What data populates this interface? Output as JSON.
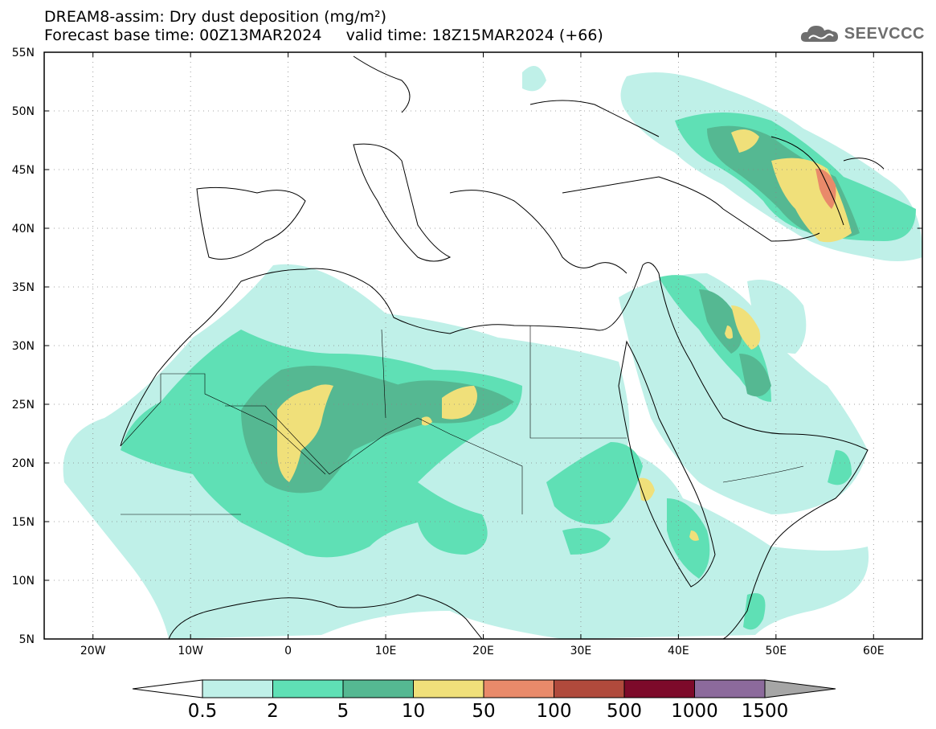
{
  "header": {
    "title_line1": "DREAM8-assim: Dry dust deposition (mg/m²)",
    "title_line2": "Forecast base time: 00Z13MAR2024     valid time: 18Z15MAR2024 (+66)",
    "logo_text": "SEEVCCC"
  },
  "map": {
    "extent": {
      "lon_min": -25,
      "lon_max": 65,
      "lat_min": 5,
      "lat_max": 55
    },
    "lat_labels": [
      "5N",
      "10N",
      "15N",
      "20N",
      "25N",
      "30N",
      "35N",
      "40N",
      "45N",
      "50N",
      "55N"
    ],
    "lat_values": [
      5,
      10,
      15,
      20,
      25,
      30,
      35,
      40,
      45,
      50,
      55
    ],
    "lon_labels": [
      "20W",
      "10W",
      "0",
      "10E",
      "20E",
      "30E",
      "40E",
      "50E",
      "60E"
    ],
    "lon_values": [
      -20,
      -10,
      0,
      10,
      20,
      30,
      40,
      50,
      60
    ]
  },
  "colorbar": {
    "labels": [
      "0.5",
      "2",
      "5",
      "10",
      "50",
      "100",
      "500",
      "1000",
      "1500"
    ],
    "colors": [
      "#bff0e8",
      "#5fe0b5",
      "#55b892",
      "#f0e07a",
      "#e98a6a",
      "#b04a3c",
      "#7d0a2a",
      "#8c6a9c",
      "#a6a6a6"
    ]
  },
  "colors": {
    "level_0_5": "#bff0e8",
    "level_2": "#5fe0b5",
    "level_5": "#55b892",
    "level_10": "#f0e07a",
    "level_50": "#e98a6a",
    "level_100": "#b04a3c"
  }
}
